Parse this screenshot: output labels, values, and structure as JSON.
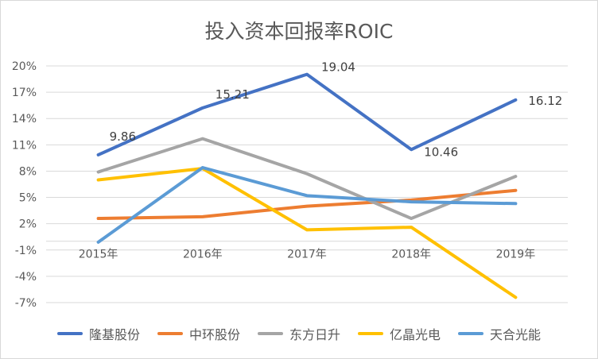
{
  "chart_data": {
    "type": "line",
    "title": "投入资本回报率ROIC",
    "categories": [
      "2015年",
      "2016年",
      "2017年",
      "2018年",
      "2019年"
    ],
    "ylim": [
      -7,
      20
    ],
    "yticks": [
      20,
      17,
      14,
      11,
      8,
      5,
      2,
      -1,
      -4,
      -7
    ],
    "ytick_labels": [
      "20%",
      "17%",
      "14%",
      "11%",
      "8%",
      "5%",
      "2%",
      "-1%",
      "-4%",
      "-7%"
    ],
    "grid": true,
    "legend_position": "bottom",
    "series": [
      {
        "name": "隆基股份",
        "color": "#4472c4",
        "values": [
          9.86,
          15.21,
          19.04,
          10.46,
          16.12
        ],
        "labels": [
          "9.86",
          "15.21",
          "19.04",
          "10.46",
          "16.12"
        ]
      },
      {
        "name": "中环股份",
        "color": "#ed7d31",
        "values": [
          2.6,
          2.8,
          4.0,
          4.7,
          5.8
        ]
      },
      {
        "name": "东方日升",
        "color": "#a5a5a5",
        "values": [
          7.9,
          11.7,
          7.7,
          2.6,
          7.4
        ]
      },
      {
        "name": "亿晶光电",
        "color": "#ffc000",
        "values": [
          7.0,
          8.3,
          1.3,
          1.6,
          -6.4
        ]
      },
      {
        "name": "天合光能",
        "color": "#5b9bd5",
        "values": [
          -0.1,
          8.4,
          5.2,
          4.5,
          4.3
        ]
      }
    ]
  }
}
